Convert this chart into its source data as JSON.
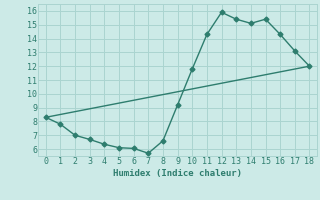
{
  "line1_x": [
    0,
    1,
    2,
    3,
    4,
    5,
    6,
    7,
    8,
    9,
    10,
    11,
    12,
    13,
    14,
    15,
    16,
    17,
    18
  ],
  "line1_y": [
    8.3,
    7.8,
    7.0,
    6.7,
    6.35,
    6.1,
    6.05,
    5.7,
    6.6,
    9.2,
    11.8,
    14.3,
    15.9,
    15.4,
    15.1,
    15.4,
    14.3,
    13.1,
    12.0
  ],
  "line2_x": [
    0,
    18
  ],
  "line2_y": [
    8.3,
    12.0
  ],
  "color": "#2e7d6e",
  "bg_color": "#cceae7",
  "grid_color": "#aad4d0",
  "xlabel": "Humidex (Indice chaleur)",
  "xlim": [
    -0.5,
    18.5
  ],
  "ylim": [
    5.5,
    16.5
  ],
  "xticks": [
    0,
    1,
    2,
    3,
    4,
    5,
    6,
    7,
    8,
    9,
    10,
    11,
    12,
    13,
    14,
    15,
    16,
    17,
    18
  ],
  "yticks": [
    6,
    7,
    8,
    9,
    10,
    11,
    12,
    13,
    14,
    15,
    16
  ]
}
